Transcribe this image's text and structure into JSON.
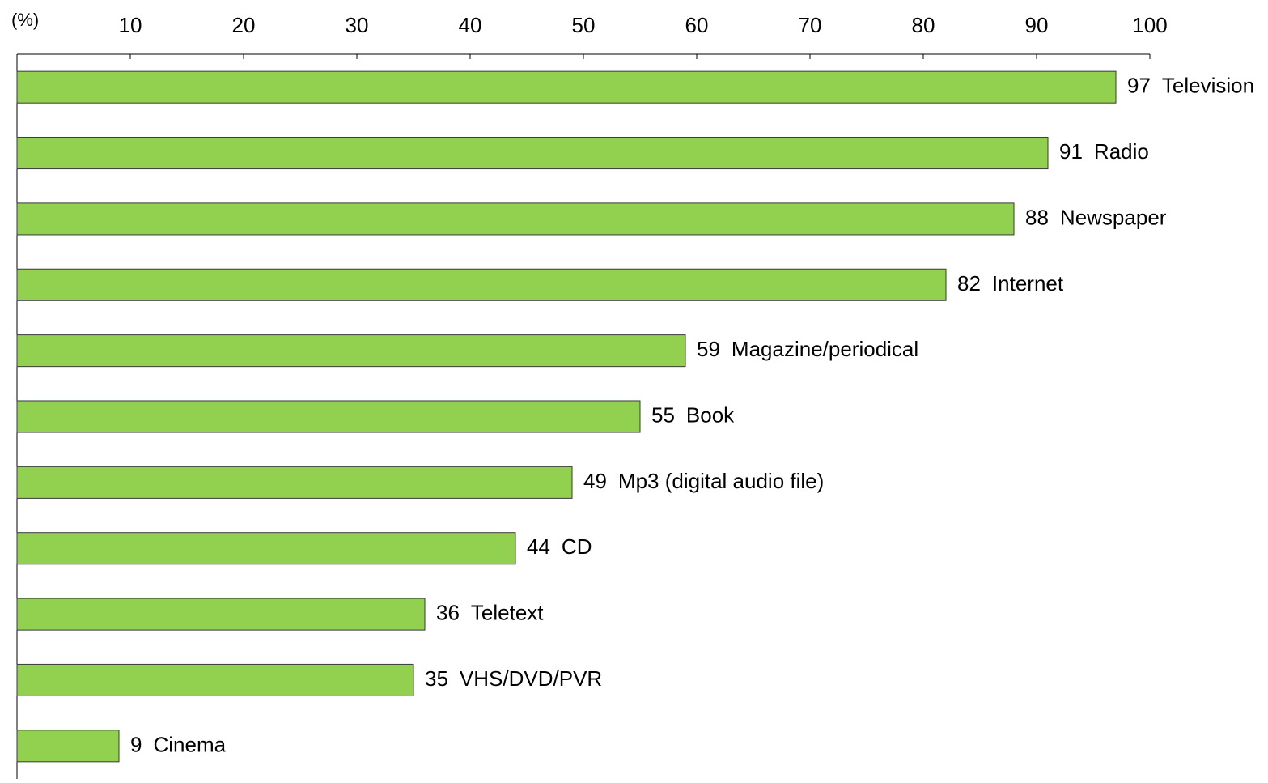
{
  "chart_data": {
    "type": "bar",
    "orientation": "horizontal",
    "axis_label": "(%)",
    "categories": [
      "Television",
      "Radio",
      "Newspaper",
      "Internet",
      "Magazine/periodical",
      "Book",
      "Mp3 (digital audio file)",
      "CD",
      "Teletext",
      "VHS/DVD/PVR",
      "Cinema"
    ],
    "values": [
      97,
      91,
      88,
      82,
      59,
      55,
      49,
      44,
      36,
      35,
      9
    ],
    "color": "#92d050",
    "xlim": [
      0,
      100
    ],
    "xticks": [
      10,
      20,
      30,
      40,
      50,
      60,
      70,
      80,
      90,
      100
    ],
    "grid": false
  }
}
